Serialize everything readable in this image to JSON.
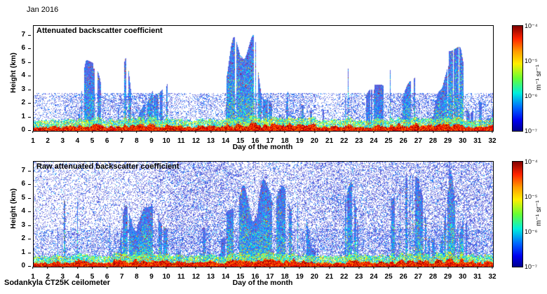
{
  "figure": {
    "date_label": "Jan 2016",
    "footer_label": "Sodankyla CT25K ceilometer"
  },
  "chart_data": [
    {
      "type": "heatmap",
      "title": "Attenuated backscatter coefficient",
      "xlabel": "Day of the month",
      "ylabel": "Height (km)",
      "xlim": [
        1,
        32
      ],
      "ylim": [
        0,
        7.7
      ],
      "xticks": [
        1,
        2,
        3,
        4,
        5,
        6,
        7,
        8,
        9,
        10,
        11,
        12,
        13,
        14,
        15,
        16,
        17,
        18,
        19,
        20,
        21,
        22,
        23,
        24,
        25,
        26,
        27,
        28,
        29,
        30,
        31,
        32
      ],
      "yticks": [
        0,
        1,
        2,
        3,
        4,
        5,
        6,
        7
      ],
      "colormap": "jet",
      "background": "white (below detection)",
      "colorbar": {
        "ticks": [
          "10⁻⁴",
          "10⁻⁵",
          "10⁻⁶",
          "10⁻⁷"
        ],
        "label": "m⁻¹ sr⁻¹",
        "scale": "log",
        "clim": [
          "1e-7",
          "1e-4"
        ]
      },
      "surface_layer": "strong backscatter (red/orange) below ~0.5 km on all days",
      "daily_activity": [
        0.25,
        0.35,
        0.8,
        0.65,
        0.6,
        0.75,
        0.8,
        0.9,
        0.75,
        0.45,
        0.3,
        0.5,
        0.45,
        0.85,
        0.9,
        0.8,
        0.75,
        0.8,
        0.7,
        0.3,
        0.35,
        0.75,
        0.45,
        0.5,
        0.75,
        0.8,
        0.7,
        0.75,
        0.9,
        0.5,
        0.55
      ],
      "low_level_speckle": 0.5
    },
    {
      "type": "heatmap",
      "title": "Raw attenuated backscatter coefficient",
      "xlabel": "Day of the month",
      "ylabel": "Height (km)",
      "xlim": [
        1,
        32
      ],
      "ylim": [
        0,
        7.7
      ],
      "xticks": [
        1,
        2,
        3,
        4,
        5,
        6,
        7,
        8,
        9,
        10,
        11,
        12,
        13,
        14,
        15,
        16,
        17,
        18,
        19,
        20,
        21,
        22,
        23,
        24,
        25,
        26,
        27,
        28,
        29,
        30,
        31,
        32
      ],
      "yticks": [
        0,
        1,
        2,
        3,
        4,
        5,
        6,
        7
      ],
      "colormap": "jet",
      "background": "dense blue noise speckle at all heights",
      "colorbar": {
        "ticks": [
          "10⁻⁴",
          "10⁻⁵",
          "10⁻⁶",
          "10⁻⁷"
        ],
        "label": "m⁻¹ sr⁻¹",
        "scale": "log",
        "clim": [
          "1e-7",
          "1e-4"
        ]
      },
      "surface_layer": "strong backscatter (red/orange) below ~0.5 km on all days",
      "daily_activity": [
        0.25,
        0.35,
        0.8,
        0.65,
        0.6,
        0.75,
        0.8,
        0.9,
        0.75,
        0.45,
        0.3,
        0.5,
        0.45,
        0.85,
        0.9,
        0.8,
        0.75,
        0.8,
        0.7,
        0.3,
        0.35,
        0.75,
        0.45,
        0.5,
        0.75,
        0.8,
        0.7,
        0.75,
        0.9,
        0.5,
        0.55
      ],
      "daily_noise": [
        0.45,
        0.4,
        0.4,
        0.45,
        0.5,
        0.45,
        0.5,
        0.55,
        0.6,
        0.75,
        0.85,
        0.85,
        0.8,
        0.75,
        0.55,
        0.55,
        0.6,
        0.6,
        0.65,
        0.75,
        0.8,
        0.75,
        0.7,
        0.75,
        0.8,
        0.75,
        0.7,
        0.8,
        0.8,
        0.8,
        0.75
      ],
      "low_level_speckle": 0.35
    }
  ]
}
